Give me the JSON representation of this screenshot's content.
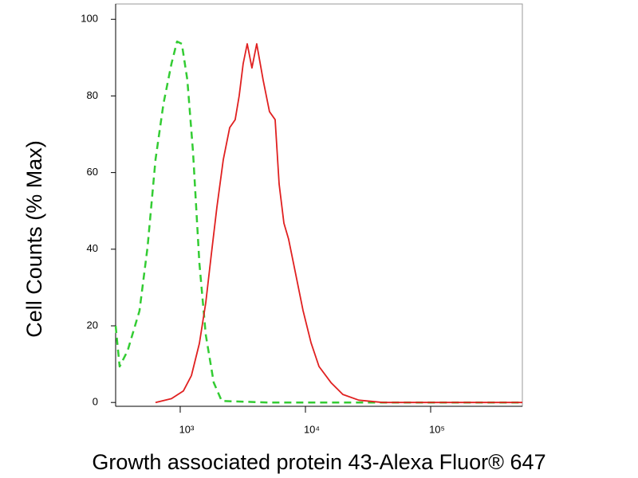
{
  "chart_data": {
    "type": "line",
    "xlabel": "Growth associated protein 43-Alexa Fluor® 647",
    "ylabel": "Cell Counts (% Max)",
    "xscale": "log",
    "xlim": [
      305,
      540000
    ],
    "ylim": [
      -1,
      104
    ],
    "xticks": [
      {
        "value": 1000,
        "label": "10³"
      },
      {
        "value": 10000,
        "label": "10⁴"
      },
      {
        "value": 100000,
        "label": "10⁵"
      }
    ],
    "yticks": [
      0,
      20,
      40,
      60,
      80,
      100
    ],
    "series": [
      {
        "color": "#33cc33",
        "style": "dashed",
        "x": [
          305,
          328,
          380,
          473,
          548,
          635,
          735,
          851,
          944,
          1030,
          1140,
          1265,
          1422,
          1600,
          1852,
          2144,
          5000,
          540000
        ],
        "values": [
          20,
          9.4,
          13.5,
          23.9,
          40.5,
          63.4,
          78,
          88.4,
          94.2,
          93.6,
          84.2,
          65.5,
          36.4,
          17.7,
          5.2,
          0.4,
          0,
          0
        ]
      },
      {
        "color": "#e02020",
        "style": "solid",
        "x": [
          635,
          851,
          1060,
          1228,
          1422,
          1600,
          1771,
          1963,
          2208,
          2483,
          2748,
          2958,
          3184,
          3428,
          3741,
          4083,
          4592,
          5164,
          5727,
          6166,
          6730,
          7345,
          8260,
          9570,
          11090,
          12830,
          16000,
          19900,
          26700,
          41500,
          540000
        ],
        "values": [
          0,
          1,
          3,
          7,
          15.4,
          26,
          38.5,
          51,
          63.4,
          71.7,
          73.8,
          80,
          88.4,
          93.6,
          87.3,
          93.6,
          84.2,
          75.9,
          73.8,
          57,
          46.8,
          42.6,
          34.3,
          24,
          15.6,
          9.4,
          5.2,
          2.1,
          0.6,
          0,
          0
        ]
      }
    ]
  }
}
